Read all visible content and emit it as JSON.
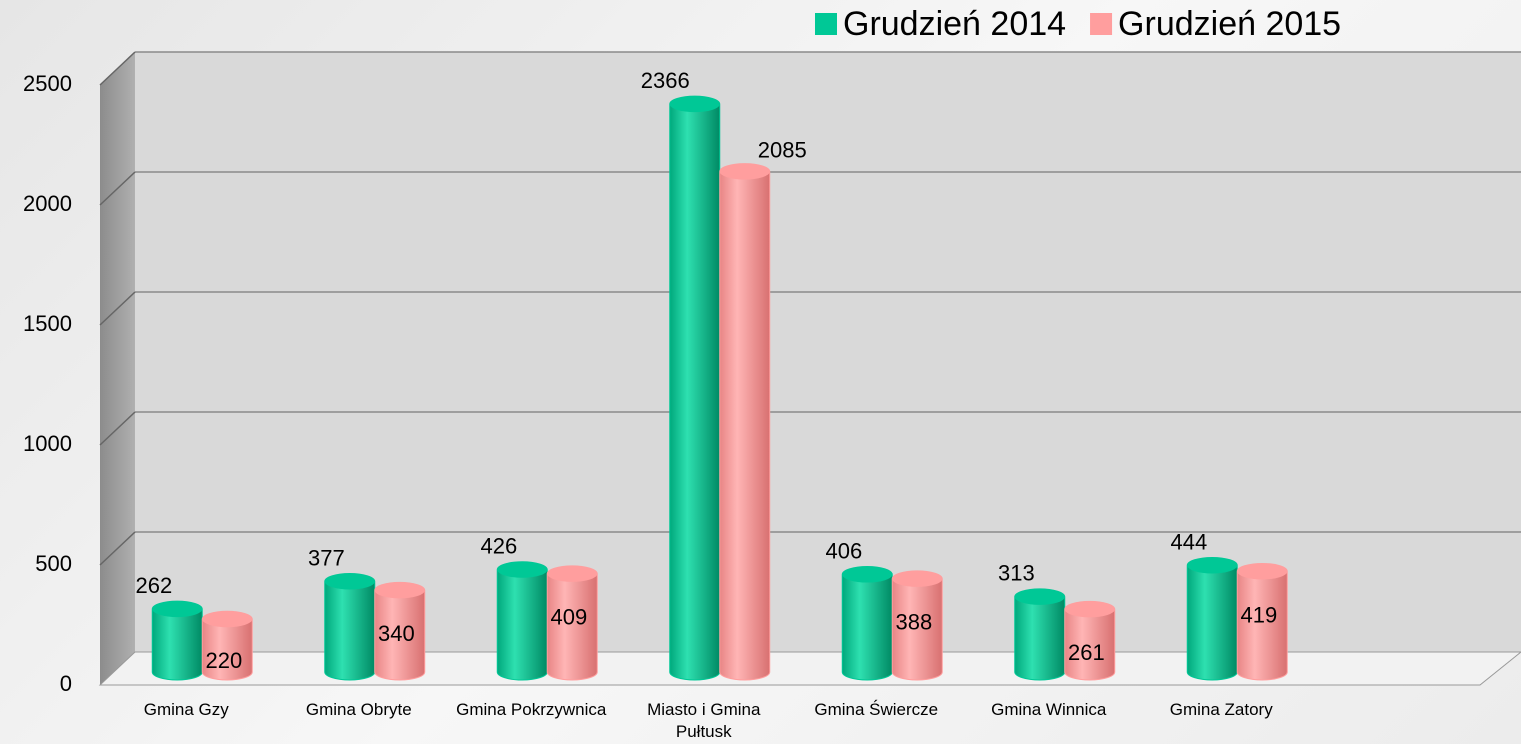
{
  "chart_data": {
    "type": "bar",
    "categories": [
      "Gmina Gzy",
      "Gmina Obryte",
      "Gmina Pokrzywnica",
      "Miasto i Gmina Pułtusk",
      "Gmina Świercze",
      "Gmina Winnica",
      "Gmina Zatory"
    ],
    "series": [
      {
        "name": "Grudzień 2014",
        "color": "#00c896",
        "values": [
          262,
          377,
          426,
          2366,
          406,
          313,
          444
        ]
      },
      {
        "name": "Grudzień 2015",
        "color": "#ff9e9e",
        "values": [
          220,
          340,
          409,
          2085,
          388,
          261,
          419
        ]
      }
    ],
    "ylim": [
      0,
      2500
    ],
    "yticks": [
      0,
      500,
      1000,
      1500,
      2000,
      2500
    ],
    "grid": true,
    "legend": "top-right"
  }
}
